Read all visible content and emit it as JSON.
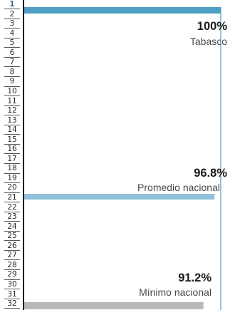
{
  "row_numbers": [
    "1",
    "2",
    "3",
    "4",
    "5",
    "6",
    "7",
    "8",
    "9",
    "10",
    "11",
    "12",
    "13",
    "14",
    "15",
    "16",
    "17",
    "18",
    "19",
    "20",
    "21",
    "22",
    "23",
    "24",
    "25",
    "26",
    "27",
    "28",
    "29",
    "30",
    "31",
    "32"
  ],
  "active_row": "1",
  "chart_data": {
    "type": "bar",
    "orientation": "horizontal",
    "categories": [
      "Tabasco",
      "Promedio nacional",
      "Mínimo nacional"
    ],
    "values": [
      100,
      96.8,
      91.2
    ],
    "value_labels": [
      "100%",
      "96.8%",
      "91.2%"
    ],
    "colors": [
      "#4f9ec4",
      "#8fc1d8",
      "#b8b8b8"
    ],
    "xlim": [
      0,
      100
    ]
  }
}
